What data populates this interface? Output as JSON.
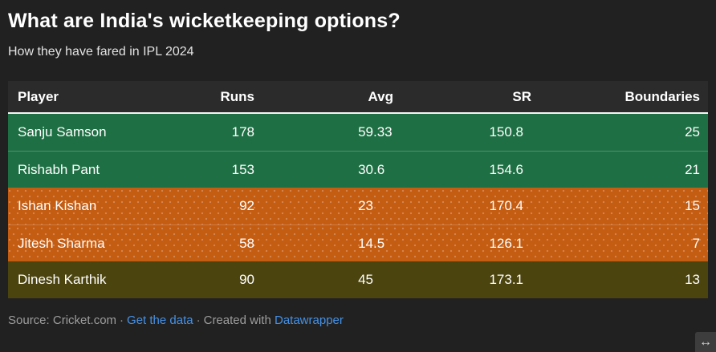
{
  "page": {
    "title": "What are India's wicketkeeping options?",
    "subtitle": "How they have fared in IPL 2024"
  },
  "chart_data": {
    "type": "table",
    "title": "What are India's wicketkeeping options?",
    "subtitle": "How they have fared in IPL 2024",
    "columns": [
      "Player",
      "Runs",
      "Avg",
      "SR",
      "Boundaries"
    ],
    "rows": [
      [
        "Sanju Samson",
        178,
        "59.33",
        "150.8",
        25
      ],
      [
        "Rishabh Pant",
        153,
        "30.6",
        "154.6",
        21
      ],
      [
        "Ishan Kishan",
        92,
        23,
        "170.4",
        15
      ],
      [
        "Jitesh Sharma",
        58,
        "14.5",
        "126.1",
        7
      ],
      [
        "Dinesh Karthik",
        90,
        45,
        "173.1",
        13
      ]
    ],
    "row_colors": [
      "#1e7044",
      "#1e7044",
      "#c45c12",
      "#c45c12",
      "#4c440f"
    ],
    "source": "Cricket.com"
  },
  "footer": {
    "source_label": "Source: Cricket.com",
    "separator": "·",
    "get_the_data": "Get the data",
    "created_with": "Created with",
    "datawrapper": "Datawrapper"
  },
  "icons": {
    "resize_arrow": "↔"
  },
  "colors": {
    "background": "#212121",
    "header_row": "#2b2b2b",
    "header_rule": "#f5f5f5",
    "row_green": "#1e7044",
    "row_orange": "#c45c12",
    "row_olive": "#4c440f",
    "link": "#4591e6",
    "footer_text": "#9d9d9d",
    "text": "#ffffff"
  }
}
